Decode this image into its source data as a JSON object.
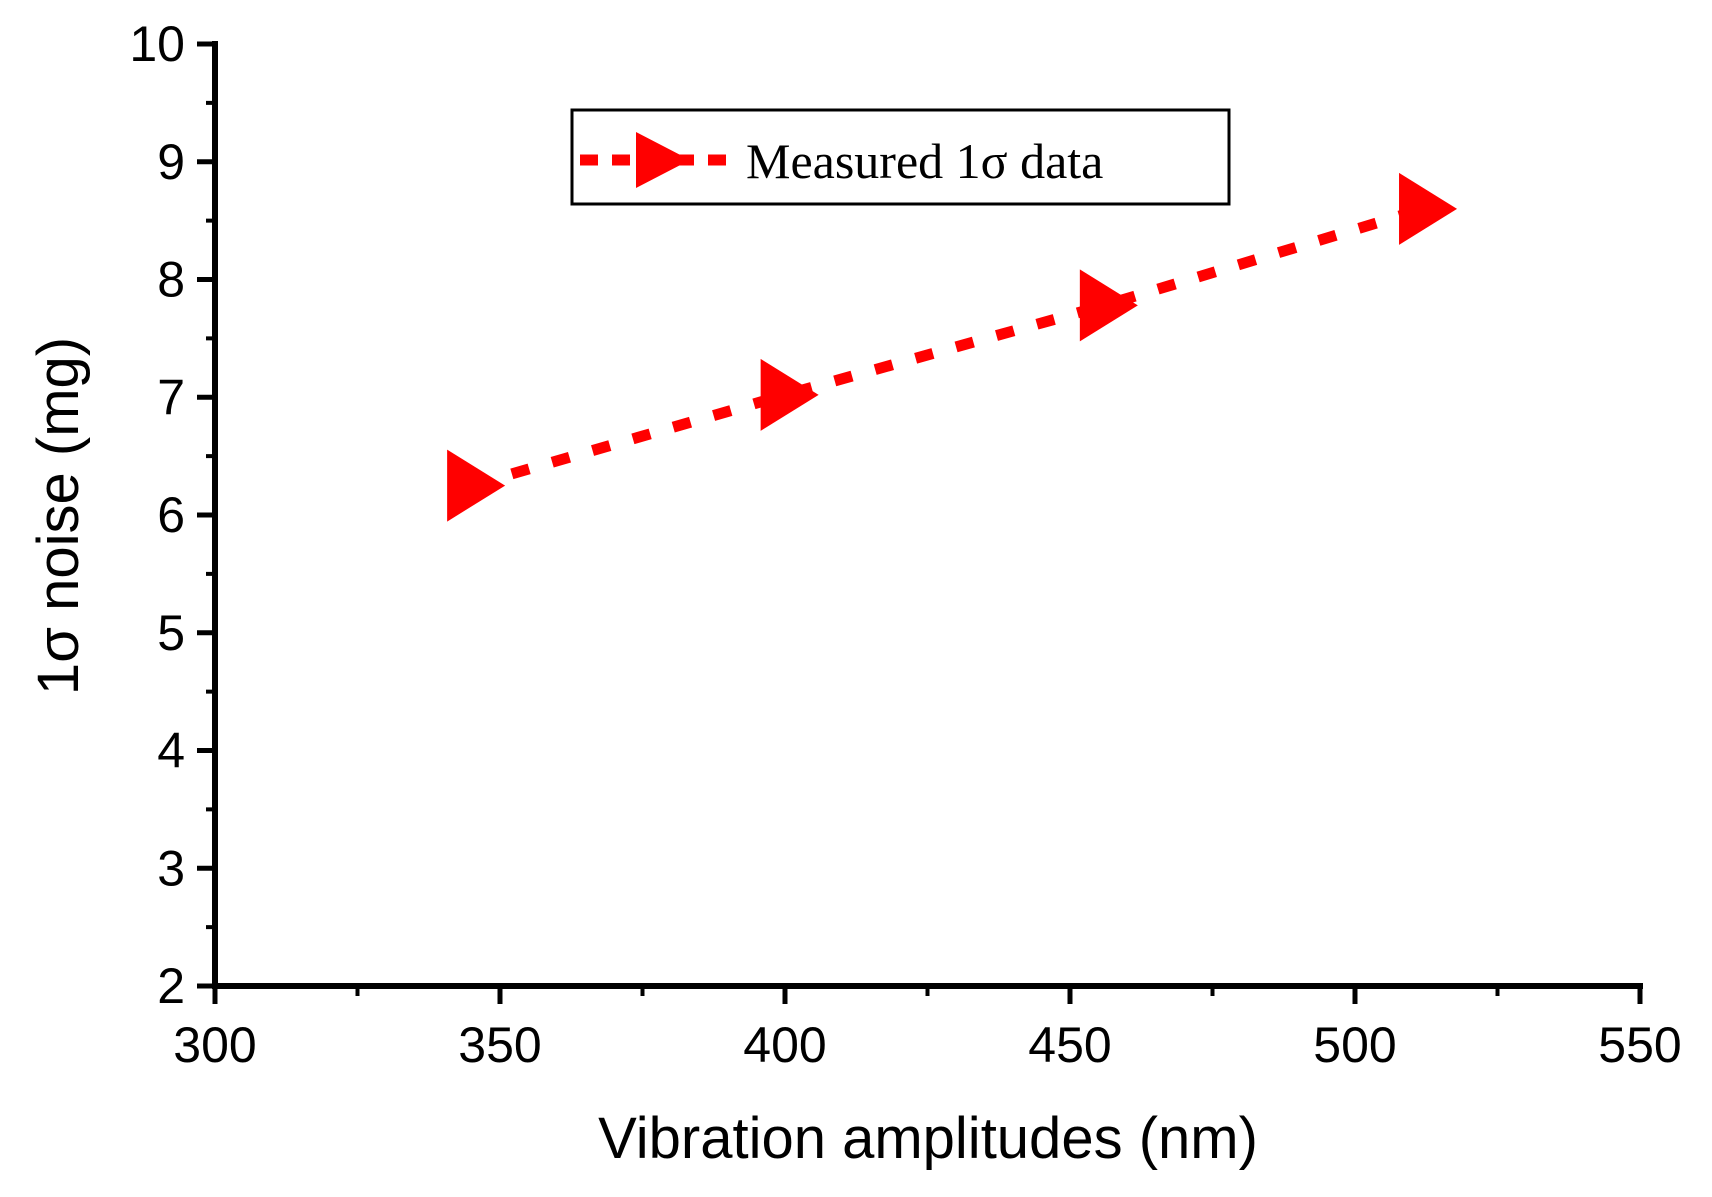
{
  "chart_data": {
    "type": "line",
    "title": "",
    "xlabel": "Vibration amplitudes (nm)",
    "ylabel": "1σ noise  (mg)",
    "xlim": [
      300,
      550
    ],
    "ylim": [
      2,
      10
    ],
    "x_ticks": [
      "300",
      "350",
      "400",
      "450",
      "500",
      "550"
    ],
    "y_ticks": [
      "2",
      "3",
      "4",
      "5",
      "6",
      "7",
      "8",
      "9",
      "10"
    ],
    "grid": false,
    "legend_position": "top-center",
    "series": [
      {
        "name": "Measured 1σ data",
        "color": "#ff0000",
        "line_style": "dotted",
        "marker": "right-triangle",
        "x": [
          345,
          400,
          456,
          512
        ],
        "y": [
          6.25,
          7.02,
          7.78,
          8.6
        ]
      }
    ]
  }
}
